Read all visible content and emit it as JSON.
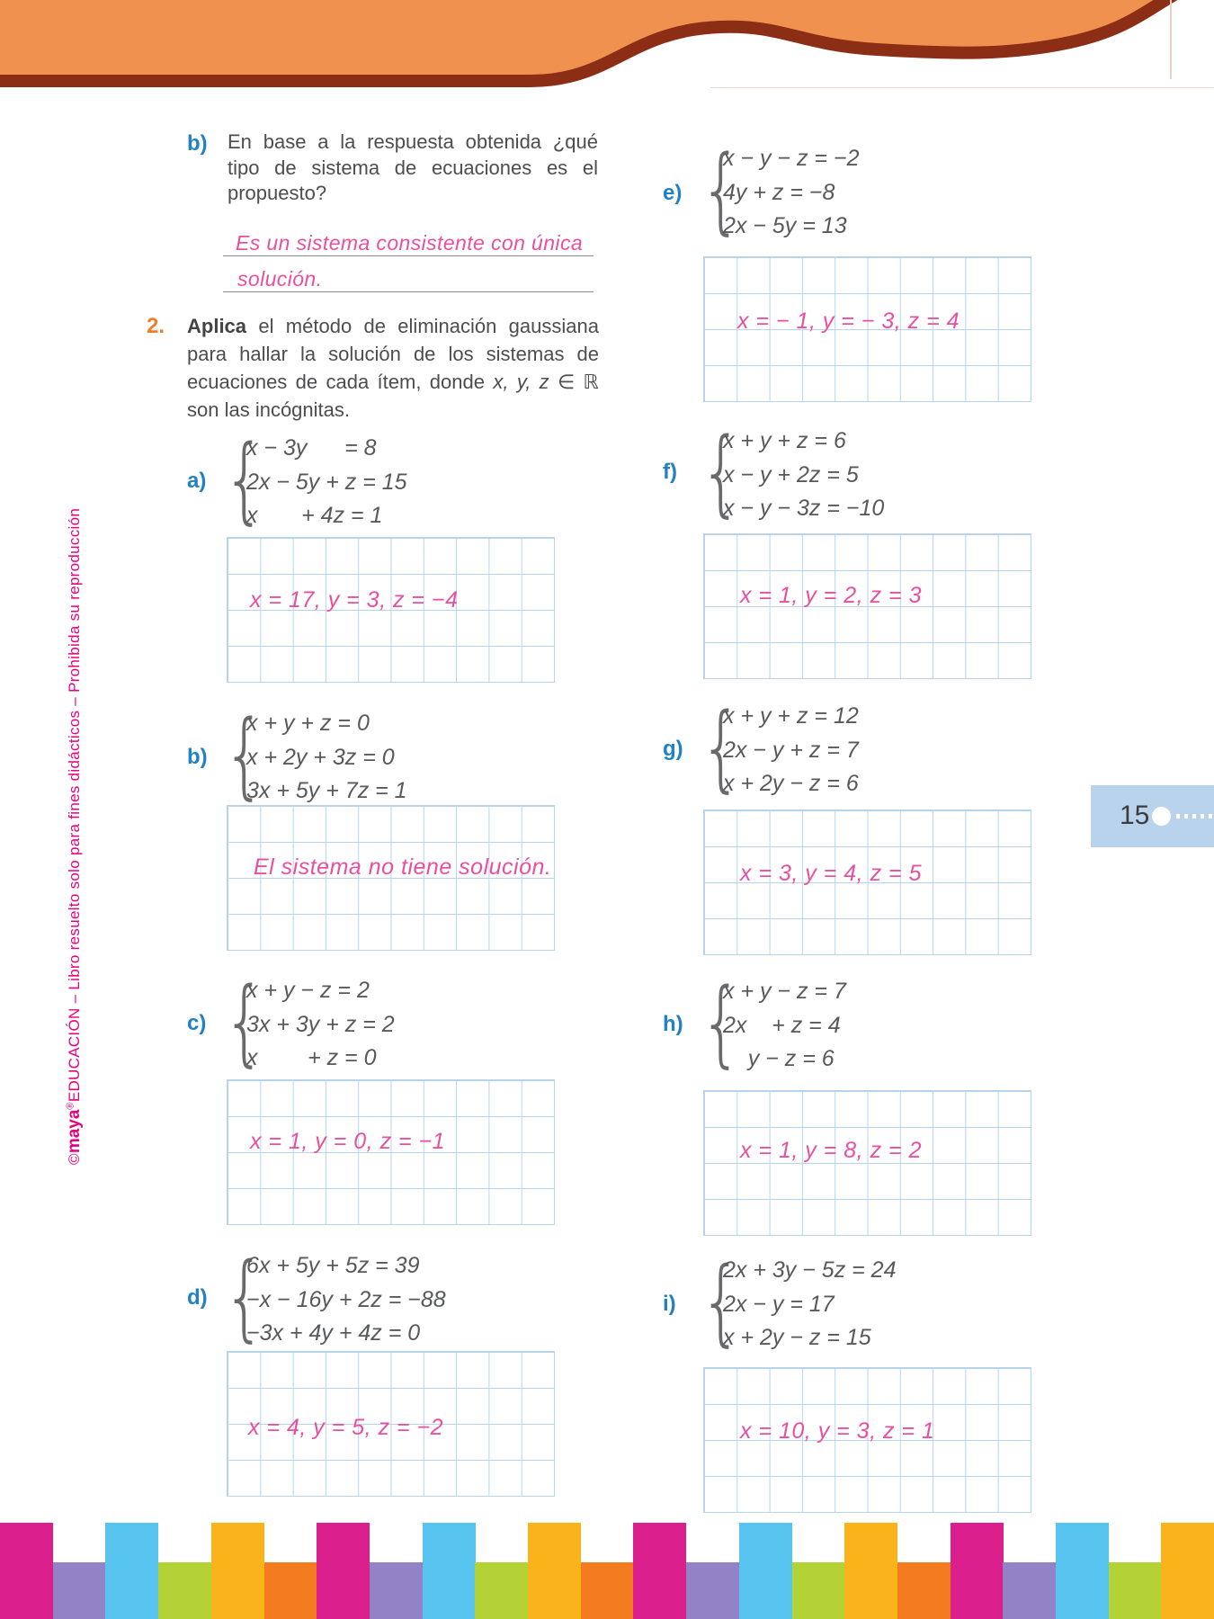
{
  "header": {
    "band_color": "#F1914F",
    "wave_color": "#8C2D15"
  },
  "sidebar": {
    "copyright": "©",
    "brand": "maya",
    "registered": "®",
    "imprint": "EDUCACIÓN",
    "legal": " – Libro resuelto solo para fines didácticos – Prohibida su reproducción",
    "color": "#E6007E"
  },
  "question_b": {
    "label": "b)",
    "text": "En base a la respuesta obtenida ¿qué tipo de sistema de ecuaciones es el propuesto?",
    "answer_line1": "Es un sistema consistente con única",
    "answer_line2": "solución."
  },
  "question_2": {
    "number": "2.",
    "verb": "Aplica",
    "text_before": "el método de eliminación gaussiana para hallar la solución de los sistemas de ecuaciones de cada ítem, donde",
    "math": "x, y, z ∈ ℝ",
    "text_after": "son las incógnitas."
  },
  "items": [
    {
      "id": "a",
      "label": "a)",
      "brace": "{",
      "eq1": "x − 3y      = 8",
      "eq2": "2x − 5y + z = 15",
      "eq3": "x       + 4z = 1",
      "answer": "x = 17, y = 3, z = −4"
    },
    {
      "id": "b",
      "label": "b)",
      "brace": "{",
      "eq1": "x + y + z = 0",
      "eq2": "x + 2y + 3z = 0",
      "eq3": "3x + 5y + 7z = 1",
      "answer": "El sistema no tiene solución."
    },
    {
      "id": "c",
      "label": "c)",
      "brace": "{",
      "eq1": "x + y − z = 2",
      "eq2": "3x + 3y + z = 2",
      "eq3": "x        + z = 0",
      "answer": "x = 1, y = 0, z = −1"
    },
    {
      "id": "d",
      "label": "d)",
      "brace": "{",
      "eq1": "6x + 5y + 5z = 39",
      "eq2": "−x − 16y + 2z = −88",
      "eq3": "−3x + 4y + 4z = 0",
      "answer": "x = 4, y = 5, z = −2"
    },
    {
      "id": "e",
      "label": "e)",
      "brace": "{",
      "eq1": "x − y − z = −2",
      "eq2": "4y + z = −8",
      "eq3": "2x − 5y = 13",
      "answer": "x = − 1, y = − 3, z = 4"
    },
    {
      "id": "f",
      "label": "f)",
      "brace": "{",
      "eq1": "x + y + z = 6",
      "eq2": "x − y + 2z = 5",
      "eq3": "x − y − 3z = −10",
      "answer": "x = 1, y = 2, z = 3"
    },
    {
      "id": "g",
      "label": "g)",
      "brace": "{",
      "eq1": "x + y + z = 12",
      "eq2": "2x − y + z = 7",
      "eq3": "x + 2y − z = 6",
      "answer": "x = 3, y = 4, z = 5"
    },
    {
      "id": "h",
      "label": "h)",
      "brace": "{",
      "eq1": "x + y − z = 7",
      "eq2": "2x    + z = 4",
      "eq3": "    y − z = 6",
      "answer": "x = 1, y = 8, z = 2"
    },
    {
      "id": "i",
      "label": "i)",
      "brace": "{",
      "eq1": "2x + 3y − 5z = 24",
      "eq2": "2x − y = 17",
      "eq3": "x + 2y − z = 15",
      "answer": "x = 10, y = 3, z = 1"
    }
  ],
  "page_badge": {
    "number": "15",
    "background": "#B9D3EC"
  },
  "footer_bars": {
    "colors": [
      "#DB1F8C",
      "#9283C6",
      "#57C3EF",
      "#B2D236",
      "#FAB41B",
      "#F37B20"
    ],
    "count": 23
  }
}
